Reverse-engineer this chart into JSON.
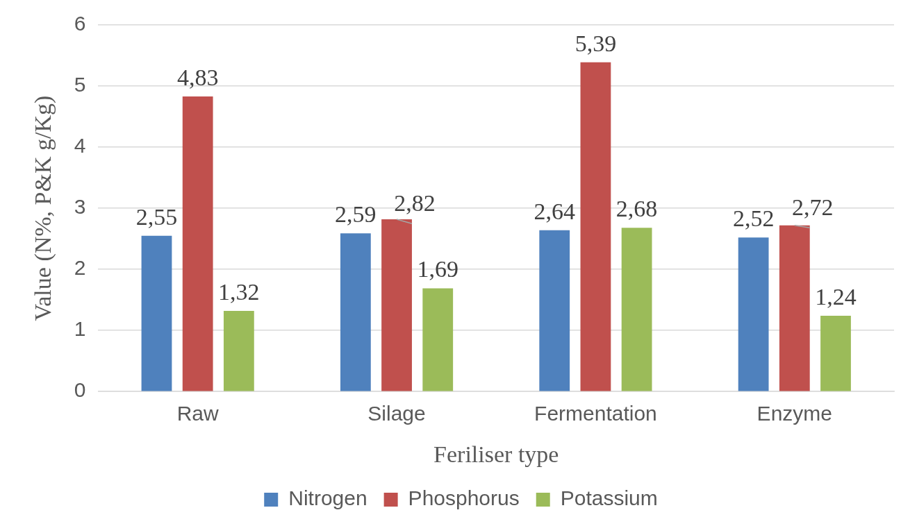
{
  "chart_data": {
    "type": "bar",
    "xlabel": "Feriliser type",
    "ylabel": "Value (N%, P&K g/Kg)",
    "categories": [
      "Raw",
      "Silage",
      "Fermentation",
      "Enzyme"
    ],
    "series": [
      {
        "name": "Nitrogen",
        "color": "#4f81bd",
        "values": [
          2.55,
          2.59,
          2.64,
          2.52
        ],
        "value_labels": [
          "2,55",
          "2,59",
          "2,64",
          "2,52"
        ]
      },
      {
        "name": "Phosphorus",
        "color": "#c0504d",
        "values": [
          4.83,
          2.82,
          5.39,
          2.72
        ],
        "value_labels": [
          "4,83",
          "2,82",
          "5,39",
          "2,72"
        ]
      },
      {
        "name": "Potassium",
        "color": "#9bbb59",
        "values": [
          1.32,
          1.69,
          2.68,
          1.24
        ],
        "value_labels": [
          "1,32",
          "1,69",
          "2,68",
          "1,24"
        ]
      }
    ],
    "ylim": [
      0,
      6
    ],
    "yticks": [
      0,
      1,
      2,
      3,
      4,
      5,
      6
    ],
    "grid": "y",
    "legend": "bottom"
  }
}
